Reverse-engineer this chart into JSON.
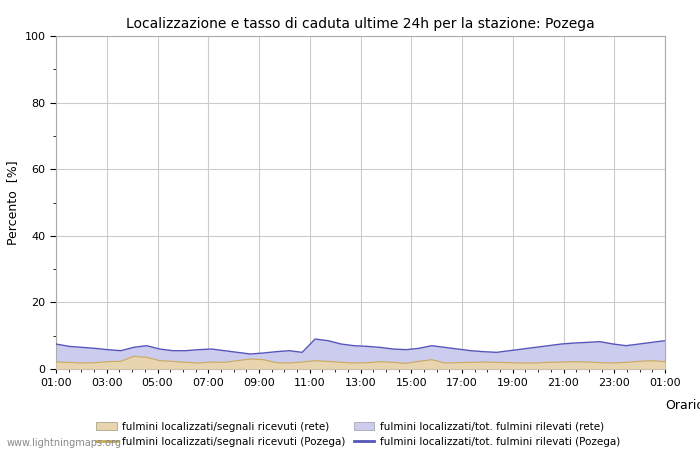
{
  "title": "Localizzazione e tasso di caduta ultime 24h per la stazione: Pozega",
  "ylabel": "Percento  [%]",
  "xlabel": "Orario",
  "xlim": [
    0,
    48
  ],
  "ylim": [
    0,
    100
  ],
  "yticks_major": [
    0,
    20,
    40,
    60,
    80,
    100
  ],
  "yticks_minor": [
    10,
    30,
    50,
    70,
    90
  ],
  "xtick_labels": [
    "01:00",
    "03:00",
    "05:00",
    "07:00",
    "09:00",
    "11:00",
    "13:00",
    "15:00",
    "17:00",
    "19:00",
    "21:00",
    "23:00",
    "01:00"
  ],
  "background_color": "#ffffff",
  "plot_bg_color": "#ffffff",
  "grid_color": "#cccccc",
  "watermark": "www.lightningmaps.org",
  "fill_rete_color": "#e8d5b0",
  "fill_pozega_color": "#ccccee",
  "line_rete_color": "#ccaa55",
  "line_pozega_color": "#5555bb",
  "legend_labels": [
    "fulmini localizzati/segnali ricevuti (rete)",
    "fulmini localizzati/segnali ricevuti (Pozega)",
    "fulmini localizzati/tot. fulmini rilevati (rete)",
    "fulmini localizzati/tot. fulmini rilevati (Pozega)"
  ],
  "data_rete_fill": [
    2.1,
    2.0,
    1.8,
    1.9,
    2.2,
    2.3,
    3.8,
    3.5,
    2.5,
    2.3,
    2.0,
    1.8,
    2.1,
    2.0,
    2.5,
    3.0,
    2.8,
    1.9,
    1.8,
    2.1,
    2.5,
    2.3,
    2.0,
    1.8,
    1.9,
    2.2,
    2.0,
    1.7,
    2.3,
    2.8,
    1.8,
    1.9,
    2.0,
    2.1,
    2.0,
    1.9,
    1.8,
    1.8,
    2.0,
    2.1,
    2.2,
    2.1,
    1.9,
    1.8,
    2.0,
    2.3,
    2.5,
    2.2
  ],
  "data_pozega_fill": [
    7.5,
    6.8,
    6.5,
    6.2,
    5.8,
    5.5,
    6.5,
    7.0,
    6.0,
    5.5,
    5.5,
    5.8,
    6.0,
    5.5,
    5.0,
    4.5,
    4.8,
    5.2,
    5.5,
    5.0,
    9.0,
    8.5,
    7.5,
    7.0,
    6.8,
    6.5,
    6.0,
    5.8,
    6.2,
    7.0,
    6.5,
    6.0,
    5.5,
    5.2,
    5.0,
    5.5,
    6.0,
    6.5,
    7.0,
    7.5,
    7.8,
    8.0,
    8.2,
    7.5,
    7.0,
    7.5,
    8.0,
    8.5
  ]
}
